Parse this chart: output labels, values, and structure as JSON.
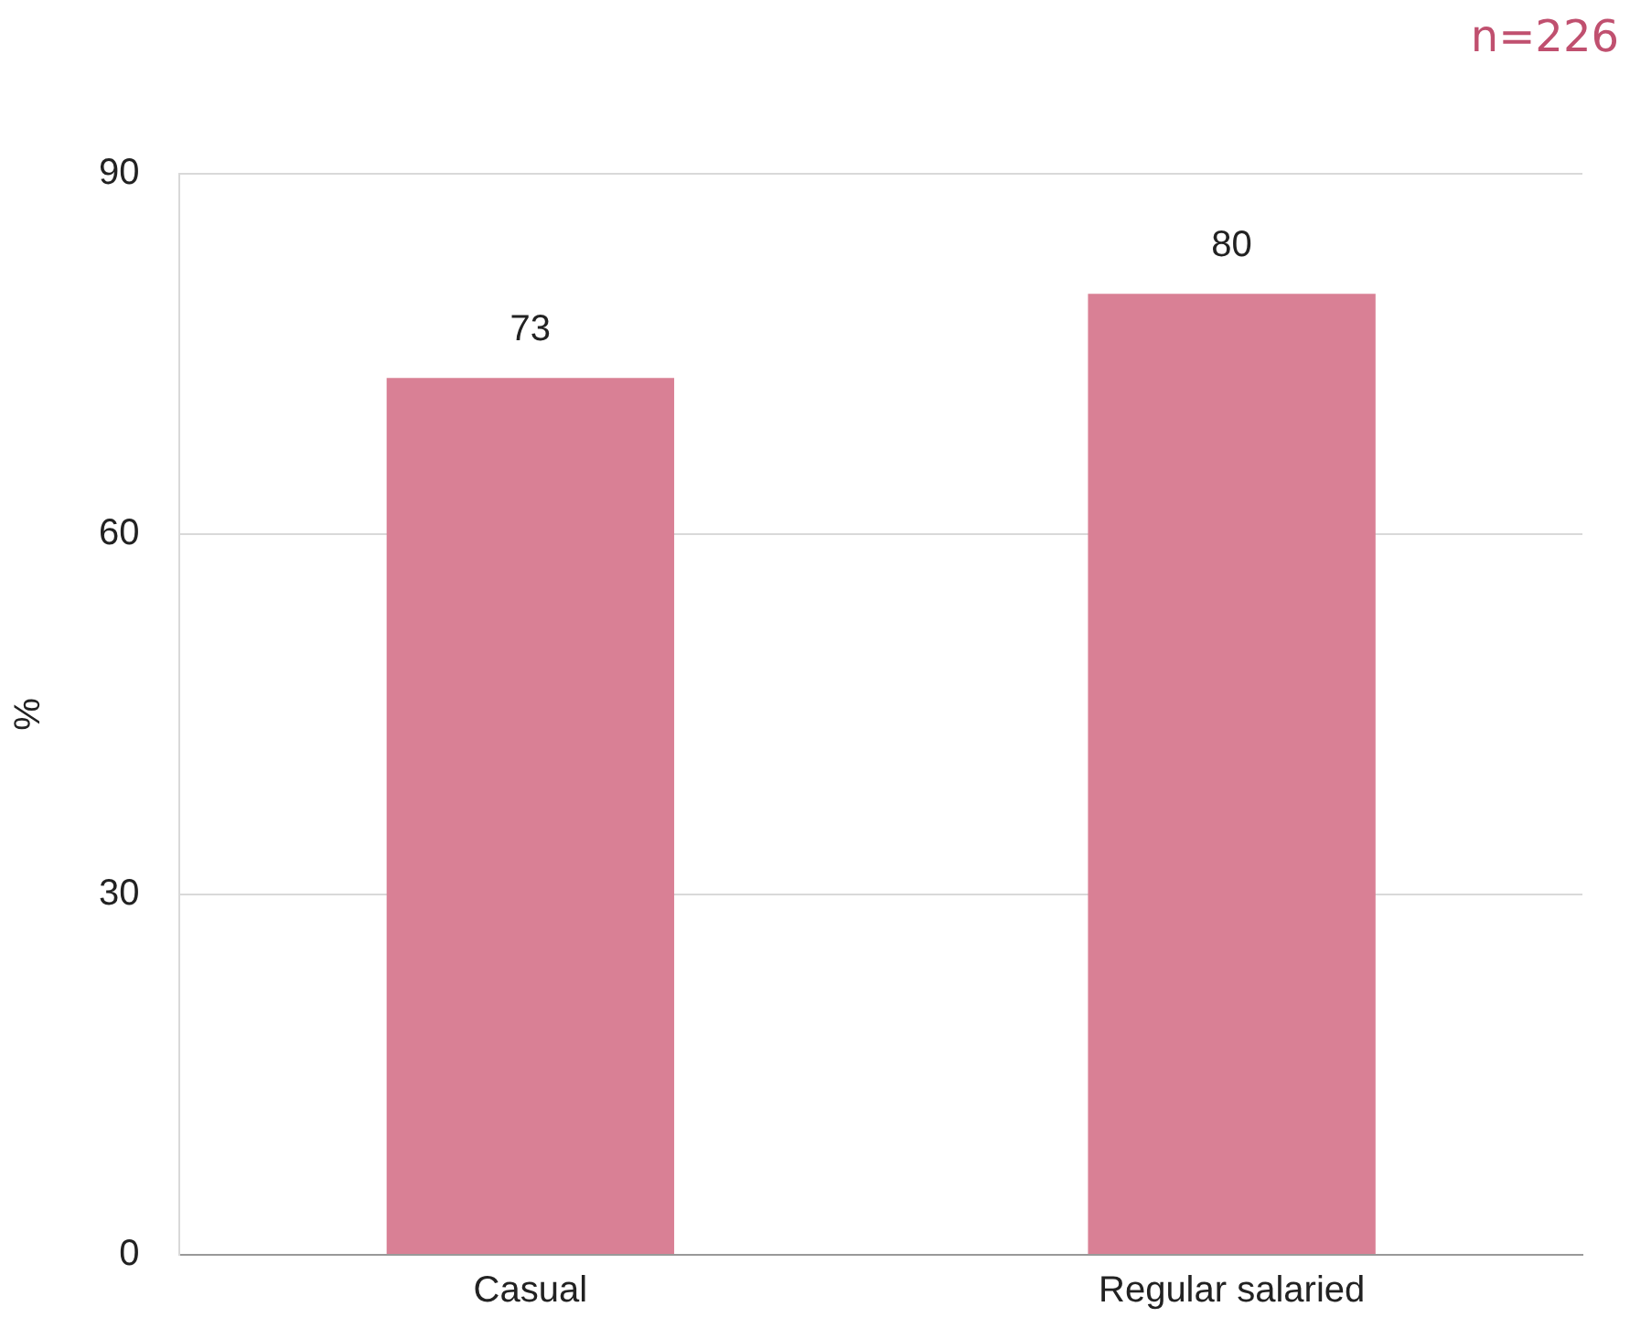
{
  "chart_data": {
    "type": "bar",
    "ylabel": "%",
    "annotations": [
      "n=226"
    ],
    "categories": [
      "Casual",
      "Regular salaried"
    ],
    "values": [
      73,
      80
    ],
    "color": "#d98095",
    "ylim": [
      0,
      90
    ],
    "yticks": [
      0,
      30,
      60,
      90
    ],
    "grid": "y",
    "data_labels": true,
    "legend": false
  }
}
